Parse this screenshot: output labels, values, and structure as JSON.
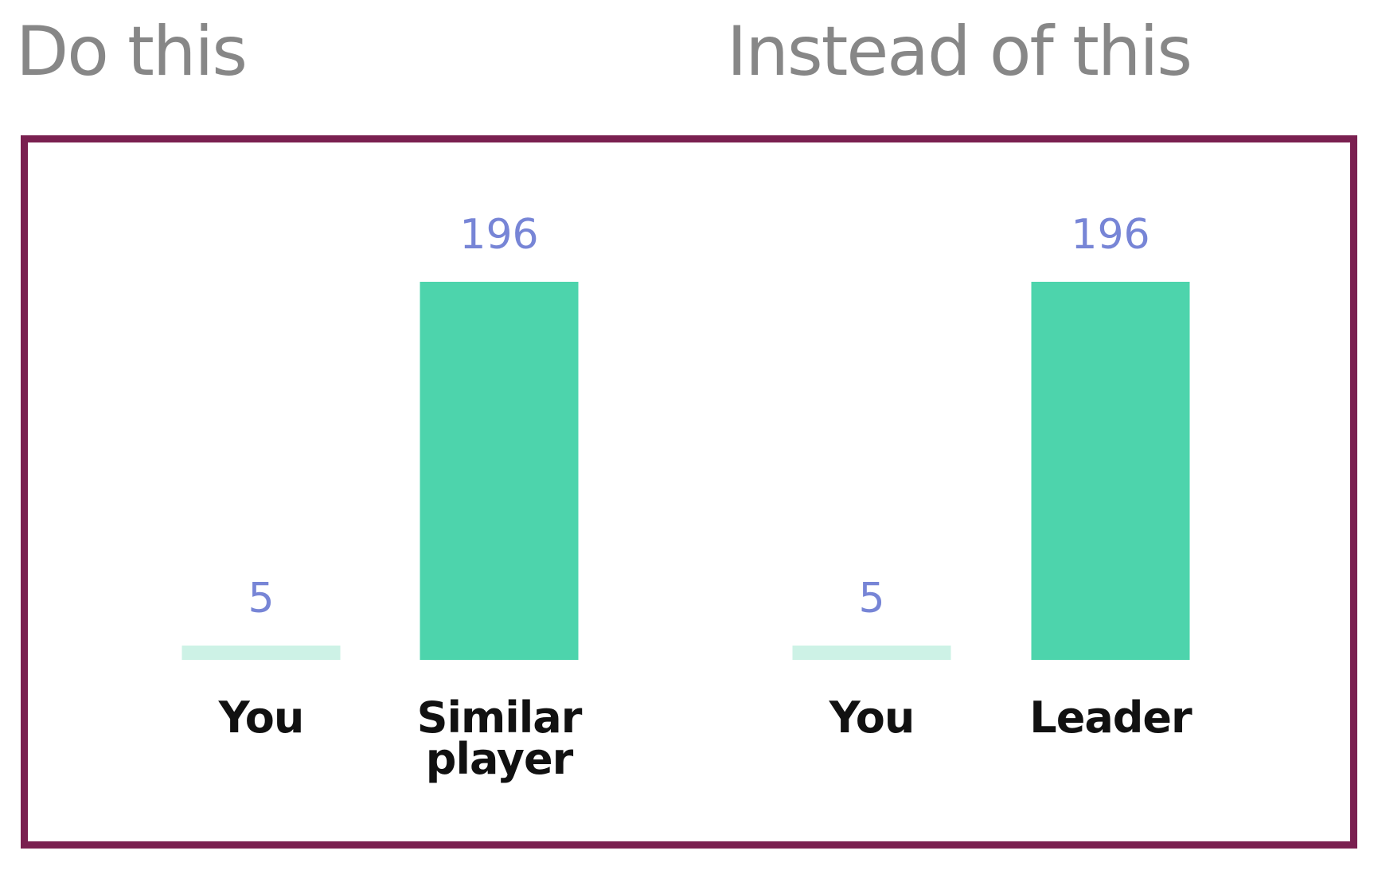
{
  "headings": {
    "left": "Do this",
    "right": "Instead of this"
  },
  "colors": {
    "frame": "#7a2050",
    "bar": "#4dd4ac",
    "bar_light": "#cdf2e6",
    "value_label": "#7785d6",
    "heading": "#878787"
  },
  "chart_data": [
    {
      "type": "bar",
      "categories": [
        "You",
        "Similar player"
      ],
      "category_lines": [
        [
          "You"
        ],
        [
          "Similar",
          "player"
        ]
      ],
      "values": [
        5,
        196
      ],
      "value_labels": [
        "5",
        "196"
      ],
      "bar_colors": [
        "#cdf2e6",
        "#4dd4ac"
      ],
      "title": "",
      "xlabel": "",
      "ylabel": "",
      "grid": false
    },
    {
      "type": "bar",
      "categories": [
        "You",
        "Leader"
      ],
      "category_lines": [
        [
          "You"
        ],
        [
          "Leader"
        ]
      ],
      "values": [
        5,
        196
      ],
      "value_labels": [
        "5",
        "196"
      ],
      "bar_colors": [
        "#cdf2e6",
        "#4dd4ac"
      ],
      "title": "",
      "xlabel": "",
      "ylabel": "",
      "grid": false
    }
  ]
}
